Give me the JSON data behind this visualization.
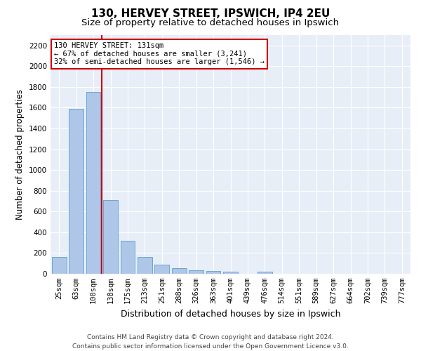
{
  "title_line1": "130, HERVEY STREET, IPSWICH, IP4 2EU",
  "title_line2": "Size of property relative to detached houses in Ipswich",
  "xlabel": "Distribution of detached houses by size in Ipswich",
  "ylabel": "Number of detached properties",
  "categories": [
    "25sqm",
    "63sqm",
    "100sqm",
    "138sqm",
    "175sqm",
    "213sqm",
    "251sqm",
    "288sqm",
    "326sqm",
    "363sqm",
    "401sqm",
    "439sqm",
    "476sqm",
    "514sqm",
    "551sqm",
    "589sqm",
    "627sqm",
    "664sqm",
    "702sqm",
    "739sqm",
    "777sqm"
  ],
  "values": [
    160,
    1590,
    1755,
    710,
    315,
    160,
    90,
    55,
    35,
    25,
    20,
    0,
    20,
    0,
    0,
    0,
    0,
    0,
    0,
    0,
    0
  ],
  "bar_color": "#aec6e8",
  "bar_edge_color": "#5a9fd4",
  "vline_color": "#cc0000",
  "annotation_text": "130 HERVEY STREET: 131sqm\n← 67% of detached houses are smaller (3,241)\n32% of semi-detached houses are larger (1,546) →",
  "annotation_box_color": "#ffffff",
  "annotation_box_edgecolor": "#cc0000",
  "ylim": [
    0,
    2300
  ],
  "yticks": [
    0,
    200,
    400,
    600,
    800,
    1000,
    1200,
    1400,
    1600,
    1800,
    2000,
    2200
  ],
  "background_color": "#e8eef7",
  "grid_color": "#ffffff",
  "footer_line1": "Contains HM Land Registry data © Crown copyright and database right 2024.",
  "footer_line2": "Contains public sector information licensed under the Open Government Licence v3.0.",
  "title_fontsize": 11,
  "subtitle_fontsize": 9.5,
  "ylabel_fontsize": 8.5,
  "xlabel_fontsize": 9,
  "tick_fontsize": 7.5,
  "annot_fontsize": 7.5,
  "footer_fontsize": 6.5
}
